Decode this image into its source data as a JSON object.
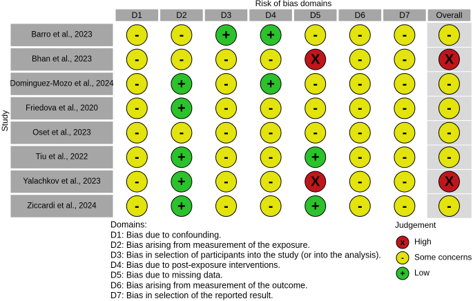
{
  "title": "Risk of bias domains",
  "y_label": "Study",
  "columns": [
    "D1",
    "D2",
    "D3",
    "D4",
    "D5",
    "D6",
    "D7",
    "Overall"
  ],
  "rows": [
    {
      "study": "Barro et al., 2023",
      "judgements": [
        "-",
        "-",
        "+",
        "+",
        "-",
        "-",
        "-",
        "-"
      ]
    },
    {
      "study": "Bhan et al., 2023",
      "judgements": [
        "-",
        "-",
        "-",
        "-",
        "X",
        "-",
        "-",
        "X"
      ]
    },
    {
      "study": "Dominguez-Mozo et al., 2024",
      "judgements": [
        "-",
        "+",
        "-",
        "+",
        "-",
        "-",
        "-",
        "-"
      ]
    },
    {
      "study": "Friedova et al., 2020",
      "judgements": [
        "-",
        "+",
        "-",
        "-",
        "-",
        "-",
        "-",
        "-"
      ]
    },
    {
      "study": "Oset et al., 2023",
      "judgements": [
        "-",
        "-",
        "-",
        "-",
        "-",
        "-",
        "-",
        "-"
      ]
    },
    {
      "study": "Tiu et al., 2022",
      "judgements": [
        "-",
        "+",
        "-",
        "-",
        "+",
        "-",
        "-",
        "-"
      ]
    },
    {
      "study": "Yalachkov et al., 2023",
      "judgements": [
        "-",
        "+",
        "-",
        "-",
        "X",
        "-",
        "-",
        "X"
      ]
    },
    {
      "study": "Ziccardi et al., 2024",
      "judgements": [
        "-",
        "+",
        "-",
        "-",
        "+",
        "-",
        "-",
        "-"
      ]
    }
  ],
  "domains": {
    "title": "Domains:",
    "items": [
      "D1: Bias due to confounding.",
      "D2: Bias arising from measurement of the exposure.",
      "D3: Bias in selection of participants into the study (or into the analysis).",
      "D4: Bias due to post-exposure interventions.",
      "D5: Bias due to missing data.",
      "D6: Bias arising from measurement of the outcome.",
      "D7: Bias in selection of the reported result."
    ]
  },
  "legend": {
    "title": "Judgement",
    "items": [
      {
        "symbol": "x",
        "label": "High",
        "color": "#c0161b"
      },
      {
        "symbol": "-",
        "label": "Some concerns",
        "color": "#e3e30d"
      },
      {
        "symbol": "+",
        "label": "Low",
        "color": "#2bc22b"
      }
    ]
  }
}
